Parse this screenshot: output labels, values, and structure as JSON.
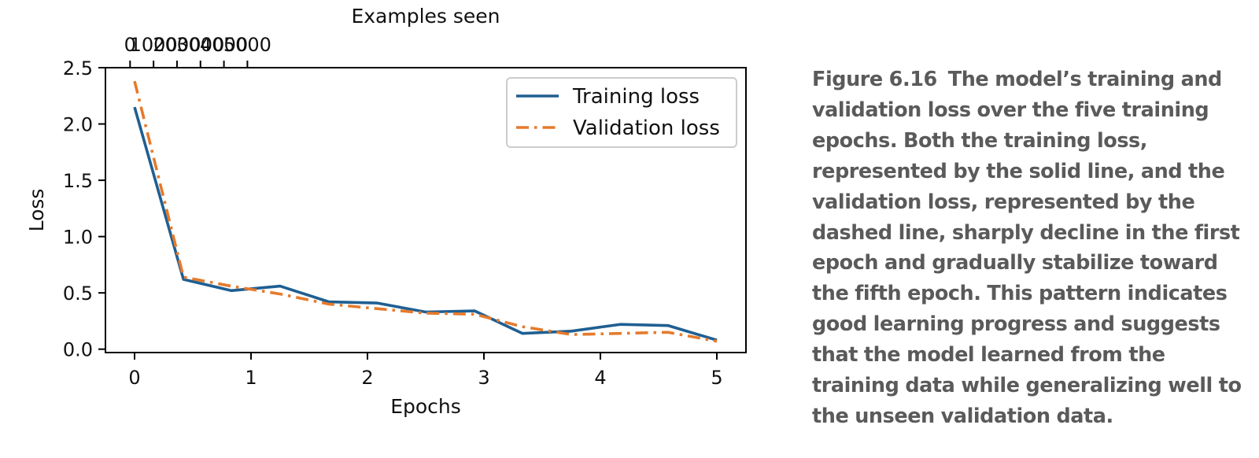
{
  "chart_data": {
    "type": "line",
    "title": "",
    "xlabel": "Epochs",
    "ylabel": "Loss",
    "secondary_xlabel": "Examples seen",
    "xlim": [
      -0.25,
      5.25
    ],
    "ylim": [
      -0.03,
      2.5
    ],
    "secondary_xlim": [
      -1050,
      26250
    ],
    "x_ticks": [
      0,
      1,
      2,
      3,
      4,
      5
    ],
    "x_tick_labels": [
      "0",
      "1",
      "2",
      "3",
      "4",
      "5"
    ],
    "y_ticks": [
      0.0,
      0.5,
      1.0,
      1.5,
      2.0,
      2.5
    ],
    "y_tick_labels": [
      "0.0",
      "0.5",
      "1.0",
      "1.5",
      "2.0",
      "2.5"
    ],
    "secondary_x_ticks": [
      0,
      1000,
      2000,
      3000,
      4000,
      5000
    ],
    "secondary_x_tick_labels": [
      "0",
      "1000",
      "2000",
      "3000",
      "4000",
      "5000"
    ],
    "grid": false,
    "legend_position": "upper-right",
    "x": [
      0,
      0.42,
      0.83,
      1.25,
      1.67,
      2.08,
      2.5,
      2.92,
      3.33,
      3.75,
      4.17,
      4.58,
      5.0
    ],
    "series": [
      {
        "name": "Training loss",
        "style": "solid",
        "color": "#1f5f92",
        "values": [
          2.15,
          0.62,
          0.52,
          0.56,
          0.42,
          0.41,
          0.33,
          0.34,
          0.14,
          0.16,
          0.22,
          0.21,
          0.08
        ]
      },
      {
        "name": "Validation loss",
        "style": "dashdot",
        "color": "#e57a2c",
        "values": [
          2.38,
          0.64,
          0.56,
          0.49,
          0.4,
          0.36,
          0.32,
          0.31,
          0.2,
          0.13,
          0.14,
          0.15,
          0.07
        ]
      }
    ]
  },
  "caption": {
    "label": "Figure 6.16",
    "text": "The model’s training and validation loss over the five training epochs. Both the training loss, represented by the solid line, and the validation loss, represented by the dashed line, sharply decline in the first epoch and gradually stabilize toward the fifth epoch. This pattern indicates good learning progress and suggests that the model learned from the training data while generalizing well to the unseen validation data."
  }
}
